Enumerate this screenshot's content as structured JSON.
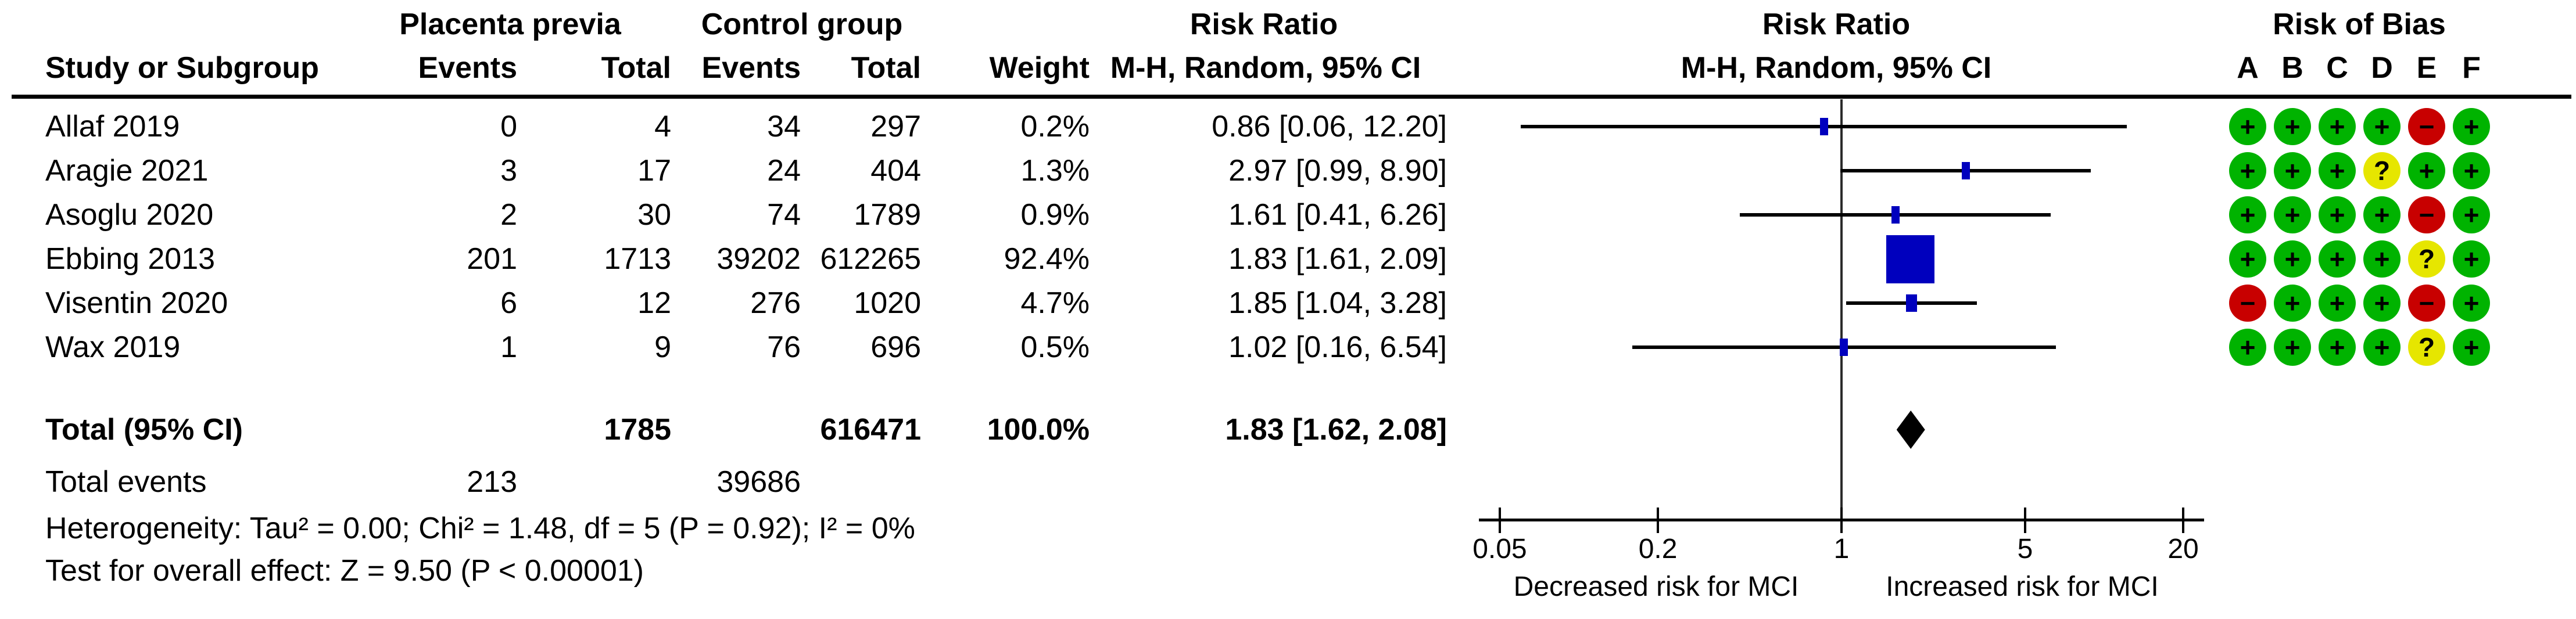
{
  "header": {
    "group1": "Placenta previa",
    "group2": "Control group",
    "col_study": "Study or Subgroup",
    "col_events1": "Events",
    "col_total1": "Total",
    "col_events2": "Events",
    "col_total2": "Total",
    "col_weight": "Weight",
    "rr_text_title": "Risk Ratio",
    "rr_text_sub": "M-H, Random, 95% CI",
    "rr_plot_title": "Risk Ratio",
    "rr_plot_sub": "M-H, Random, 95% CI",
    "rob_title": "Risk of Bias",
    "rob_cols": [
      "A",
      "B",
      "C",
      "D",
      "E",
      "F"
    ]
  },
  "studies": [
    {
      "name": "Allaf 2019",
      "events1": "0",
      "total1": "4",
      "events2": "34",
      "total2": "297",
      "weight": "0.2%",
      "weight_pct": 0.2,
      "rr_text": "0.86 [0.06, 12.20]",
      "est": 0.86,
      "lo": 0.06,
      "hi": 12.2,
      "rob": [
        "+",
        "+",
        "+",
        "+",
        "-",
        "+"
      ]
    },
    {
      "name": "Aragie 2021",
      "events1": "3",
      "total1": "17",
      "events2": "24",
      "total2": "404",
      "weight": "1.3%",
      "weight_pct": 1.3,
      "rr_text": "2.97 [0.99, 8.90]",
      "est": 2.97,
      "lo": 0.99,
      "hi": 8.9,
      "rob": [
        "+",
        "+",
        "+",
        "?",
        "+",
        "+"
      ]
    },
    {
      "name": "Asoglu 2020",
      "events1": "2",
      "total1": "30",
      "events2": "74",
      "total2": "1789",
      "weight": "0.9%",
      "weight_pct": 0.9,
      "rr_text": "1.61 [0.41, 6.26]",
      "est": 1.61,
      "lo": 0.41,
      "hi": 6.26,
      "rob": [
        "+",
        "+",
        "+",
        "+",
        "-",
        "+"
      ]
    },
    {
      "name": "Ebbing 2013",
      "events1": "201",
      "total1": "1713",
      "events2": "39202",
      "total2": "612265",
      "weight": "92.4%",
      "weight_pct": 92.4,
      "rr_text": "1.83 [1.61, 2.09]",
      "est": 1.83,
      "lo": 1.61,
      "hi": 2.09,
      "rob": [
        "+",
        "+",
        "+",
        "+",
        "?",
        "+"
      ]
    },
    {
      "name": "Visentin 2020",
      "events1": "6",
      "total1": "12",
      "events2": "276",
      "total2": "1020",
      "weight": "4.7%",
      "weight_pct": 4.7,
      "rr_text": "1.85 [1.04, 3.28]",
      "est": 1.85,
      "lo": 1.04,
      "hi": 3.28,
      "rob": [
        "-",
        "+",
        "+",
        "+",
        "-",
        "+"
      ]
    },
    {
      "name": "Wax 2019",
      "events1": "1",
      "total1": "9",
      "events2": "76",
      "total2": "696",
      "weight": "0.5%",
      "weight_pct": 0.5,
      "rr_text": "1.02 [0.16, 6.54]",
      "est": 1.02,
      "lo": 0.16,
      "hi": 6.54,
      "rob": [
        "+",
        "+",
        "+",
        "+",
        "?",
        "+"
      ]
    }
  ],
  "total": {
    "label": "Total (95% CI)",
    "total1": "1785",
    "total2": "616471",
    "weight": "100.0%",
    "rr_text": "1.83 [1.62, 2.08]",
    "est": 1.83,
    "lo": 1.62,
    "hi": 2.08
  },
  "total_events": {
    "label": "Total events",
    "events1": "213",
    "events2": "39686"
  },
  "footer": {
    "heterogeneity": "Heterogeneity: Tau² = 0.00; Chi² = 1.48, df = 5 (P = 0.92); I² = 0%",
    "overall_effect": "Test for overall effect: Z = 9.50 (P < 0.00001)"
  },
  "axis": {
    "ticks": [
      0.05,
      0.2,
      1,
      5,
      20
    ],
    "tick_labels": [
      "0.05",
      "0.2",
      "1",
      "5",
      "20"
    ],
    "left_label": "Decreased risk for MCI",
    "right_label": "Increased risk for MCI"
  },
  "colors": {
    "marker_blue": "#0000BE",
    "line_black": "#000000",
    "rob": {
      "+": "#00B300",
      "-": "#C80000",
      "?": "#E6E600"
    }
  },
  "chart_data": {
    "type": "scatter",
    "subtype": "forest_plot",
    "title": "Risk Ratio (M-H, Random, 95% CI)",
    "x_scale": "log",
    "x_ticks": [
      0.05,
      0.2,
      1,
      5,
      20
    ],
    "xlim": [
      0.05,
      20
    ],
    "x_axis_annotations": [
      "Decreased risk for MCI",
      "Increased risk for MCI"
    ],
    "series": [
      {
        "name": "Allaf 2019",
        "est": 0.86,
        "ci": [
          0.06,
          12.2
        ],
        "weight_pct": 0.2
      },
      {
        "name": "Aragie 2021",
        "est": 2.97,
        "ci": [
          0.99,
          8.9
        ],
        "weight_pct": 1.3
      },
      {
        "name": "Asoglu 2020",
        "est": 1.61,
        "ci": [
          0.41,
          6.26
        ],
        "weight_pct": 0.9
      },
      {
        "name": "Ebbing 2013",
        "est": 1.83,
        "ci": [
          1.61,
          2.09
        ],
        "weight_pct": 92.4
      },
      {
        "name": "Visentin 2020",
        "est": 1.85,
        "ci": [
          1.04,
          3.28
        ],
        "weight_pct": 4.7
      },
      {
        "name": "Wax 2019",
        "est": 1.02,
        "ci": [
          0.16,
          6.54
        ],
        "weight_pct": 0.5
      }
    ],
    "total": {
      "name": "Total (95% CI)",
      "est": 1.83,
      "ci": [
        1.62,
        2.08
      ],
      "weight_pct": 100.0,
      "heterogeneity": "Tau² = 0.00; Chi² = 1.48, df = 5 (P = 0.92); I² = 0%",
      "overall_effect": "Z = 9.50 (P < 0.00001)"
    }
  }
}
